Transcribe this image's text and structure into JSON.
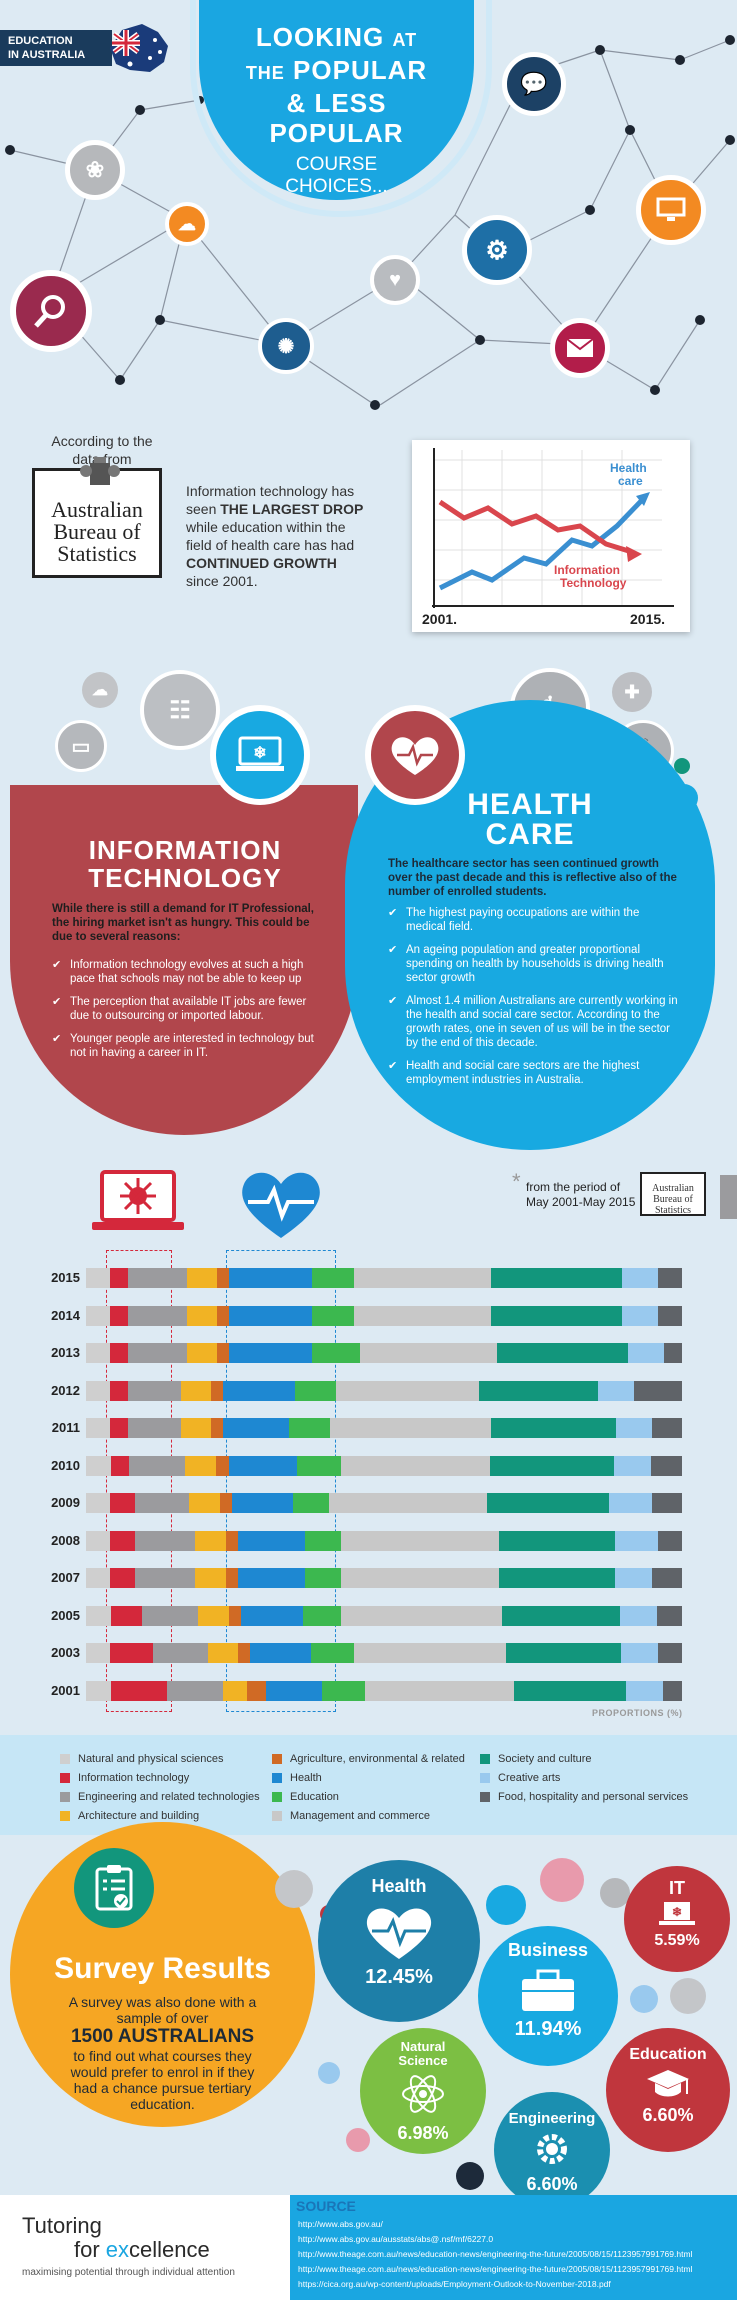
{
  "header": {
    "tag_line1": "EDUCATION",
    "tag_line2": "IN AUSTRALIA",
    "title_l1_big": "LOOKING",
    "title_l1_small": "AT",
    "title_l2_small": "THE",
    "title_l2_big": "POPULAR",
    "title_l3": "& LESS",
    "title_l4": "POPULAR",
    "subtitle_l1": "COURSE",
    "subtitle_l2": "CHOICES..."
  },
  "abs": {
    "according_l1": "According to the",
    "according_l2": "data from",
    "logo_l1": "Australian",
    "logo_l2": "Bureau of",
    "logo_l3": "Statistics",
    "text_a": "Information technology has",
    "text_b": "seen",
    "text_bold1": "THE LARGEST DROP",
    "text_c": "while education within the",
    "text_d": "field of health care has had",
    "text_bold2": "CONTINUED GROWTH",
    "text_e": "since 2001."
  },
  "trend_chart": {
    "health_l1": "Health",
    "health_l2": "care",
    "it_l1": "Information",
    "it_l2": "Technology",
    "x_start": "2001.",
    "x_end": "2015."
  },
  "it_section": {
    "title_l1": "INFORMATION",
    "title_l2": "TECHNOLOGY",
    "intro": "While there is still a demand for IT Professional, the hiring market isn't as hungry. This could be due to several reasons:",
    "bullets": [
      "Information technology evolves at such a high pace that schools may not be able to keep up",
      "The perception that available IT jobs are fewer due to outsourcing or imported labour.",
      "Younger people are interested in technology but not in having a career in IT."
    ]
  },
  "hc_section": {
    "title_l1": "HEALTH",
    "title_l2": "CARE",
    "intro": "The healthcare sector has seen continued growth over the past decade and this is reflective also of the number of enrolled students.",
    "bullets": [
      "The highest paying occupations are within the medical field.",
      "An ageing population and greater proportional spending on health by households is driving health sector growth",
      "Almost 1.4 million Australians are currently working in the health and social care sector. According to the growth rates, one in seven of us will be in the sector by the end of this decade.",
      "Health and social care sectors are the highest employment industries in Australia."
    ]
  },
  "period_note": {
    "asterisk": "*",
    "l1": "from the period of",
    "l2": "May 2001-May 2015",
    "logo_l1": "Australian",
    "logo_l2": "Bureau of",
    "logo_l3": "Statistics"
  },
  "chart_data": {
    "type": "bar",
    "stacked": "100%",
    "orientation": "horizontal",
    "xlabel": "PROPORTIONS (%)",
    "categories": [
      "2015",
      "2014",
      "2013",
      "2012",
      "2011",
      "2010",
      "2009",
      "2008",
      "2007",
      "2005",
      "2003",
      "2001"
    ],
    "series": [
      {
        "name": "Natural and physical sciences",
        "color": "#cfcfcf",
        "values": [
          4,
          4,
          4,
          4,
          4,
          4,
          4,
          4,
          4,
          4,
          4,
          4
        ]
      },
      {
        "name": "Information technology",
        "color": "#d4283b",
        "values": [
          3,
          3,
          3,
          3,
          3,
          3,
          4,
          4,
          4,
          5,
          7,
          9
        ]
      },
      {
        "name": "Engineering and related technologies",
        "color": "#9b9b9e",
        "values": [
          10,
          10,
          10,
          9,
          9,
          9,
          9,
          10,
          10,
          9,
          9,
          9
        ]
      },
      {
        "name": "Architecture and building",
        "color": "#f1b324",
        "values": [
          5,
          5,
          5,
          5,
          5,
          5,
          5,
          5,
          5,
          5,
          5,
          4
        ]
      },
      {
        "name": "Agriculture, environmental & related",
        "color": "#d06a25",
        "values": [
          2,
          2,
          2,
          2,
          2,
          2,
          2,
          2,
          2,
          2,
          2,
          3
        ]
      },
      {
        "name": "Health",
        "color": "#1e88d2",
        "values": [
          14,
          14,
          14,
          12,
          11,
          11,
          10,
          11,
          11,
          10,
          10,
          9
        ]
      },
      {
        "name": "Education",
        "color": "#3cb84f",
        "values": [
          7,
          7,
          8,
          7,
          7,
          7,
          6,
          6,
          6,
          6,
          7,
          7
        ]
      },
      {
        "name": "Management and commerce",
        "color": "#c8c8c8",
        "values": [
          23,
          23,
          23,
          24,
          27,
          24,
          26,
          26,
          26,
          26,
          25,
          24
        ]
      },
      {
        "name": "Society and culture",
        "color": "#12967c",
        "values": [
          22,
          22,
          22,
          20,
          21,
          20,
          20,
          19,
          19,
          19,
          19,
          18
        ]
      },
      {
        "name": "Creative arts",
        "color": "#99c9ee",
        "values": [
          6,
          6,
          6,
          6,
          6,
          6,
          7,
          7,
          6,
          6,
          6,
          6
        ]
      },
      {
        "name": "Food, hospitality and personal services",
        "color": "#5f6368",
        "values": [
          4,
          4,
          3,
          8,
          5,
          5,
          5,
          4,
          5,
          4,
          4,
          3
        ]
      }
    ]
  },
  "survey": {
    "title": "Survey Results",
    "line1": "A survey was also done with a",
    "line2": "sample of over",
    "bold": "1500 AUSTRALIANS",
    "line3": "to find out what courses they",
    "line4": "would prefer to enrol in if they",
    "line5": "had a chance pursue tertiary",
    "line6": "education.",
    "results": [
      {
        "name": "Health",
        "value": "12.45%",
        "color": "#1e7fa8"
      },
      {
        "name": "Business",
        "value": "11.94%",
        "color": "#18a9e1"
      },
      {
        "name": "IT",
        "value": "5.59%",
        "color": "#c0363d"
      },
      {
        "name_l1": "Natural",
        "name_l2": "Science",
        "value": "6.98%",
        "color": "#7cbf43"
      },
      {
        "name": "Engineering",
        "value": "6.60%",
        "color": "#1b8fb0"
      },
      {
        "name": "Education",
        "value": "6.60%",
        "color": "#c0363d"
      }
    ]
  },
  "footer": {
    "brand_l1": "Tutoring",
    "brand_l2a": "for ",
    "brand_l2b": "ex",
    "brand_l2c": "cellence",
    "tagline": "maximising potential through individual attention",
    "source_title": "SOURCE",
    "sources": [
      "http://www.abs.gov.au/",
      "http://www.abs.gov.au/ausstats/abs@.nsf/mf/6227.0",
      "http://www.theage.com.au/news/education-news/engineering-the-future/2005/08/15/1123957991769.html",
      "http://www.theage.com.au/news/education-news/engineering-the-future/2005/08/15/1123957991769.html",
      "https://cica.org.au/wp-content/uploads/Employment-Outlook-to-November-2018.pdf"
    ]
  },
  "colors": {
    "primary_blue": "#1aa6e1",
    "it_red": "#b1464c",
    "survey_orange": "#f6a623",
    "navy": "#1a3b5c"
  }
}
